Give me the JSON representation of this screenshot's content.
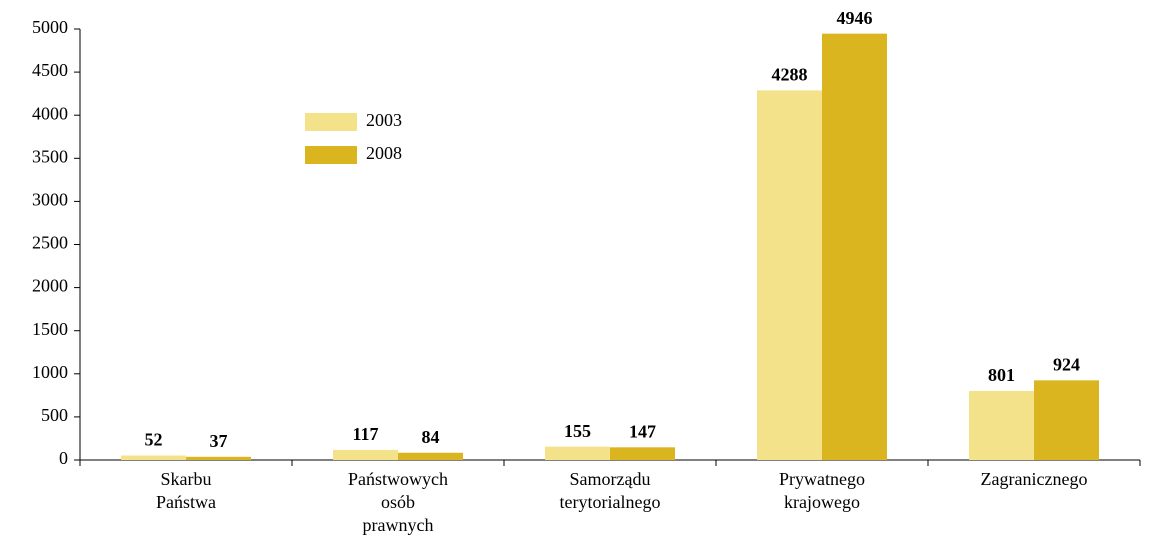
{
  "chart_data": {
    "type": "bar",
    "categories": [
      "Skarbu\nPaństwa",
      "Państwowych\nosób\nprawnych",
      "Samorządu\nterytorialnego",
      "Prywatnego\nkrajowego",
      "Zagranicznego"
    ],
    "series": [
      {
        "name": "2003",
        "color": "#f3e28a",
        "values": [
          52,
          117,
          155,
          4288,
          801
        ]
      },
      {
        "name": "2008",
        "color": "#dbb520",
        "values": [
          37,
          84,
          147,
          4946,
          924
        ]
      }
    ],
    "ylim": [
      0,
      5000
    ],
    "yticks": [
      0,
      500,
      1000,
      1500,
      2000,
      2500,
      3000,
      3500,
      4000,
      4500,
      5000
    ],
    "grid": false,
    "legend": "upper left"
  }
}
